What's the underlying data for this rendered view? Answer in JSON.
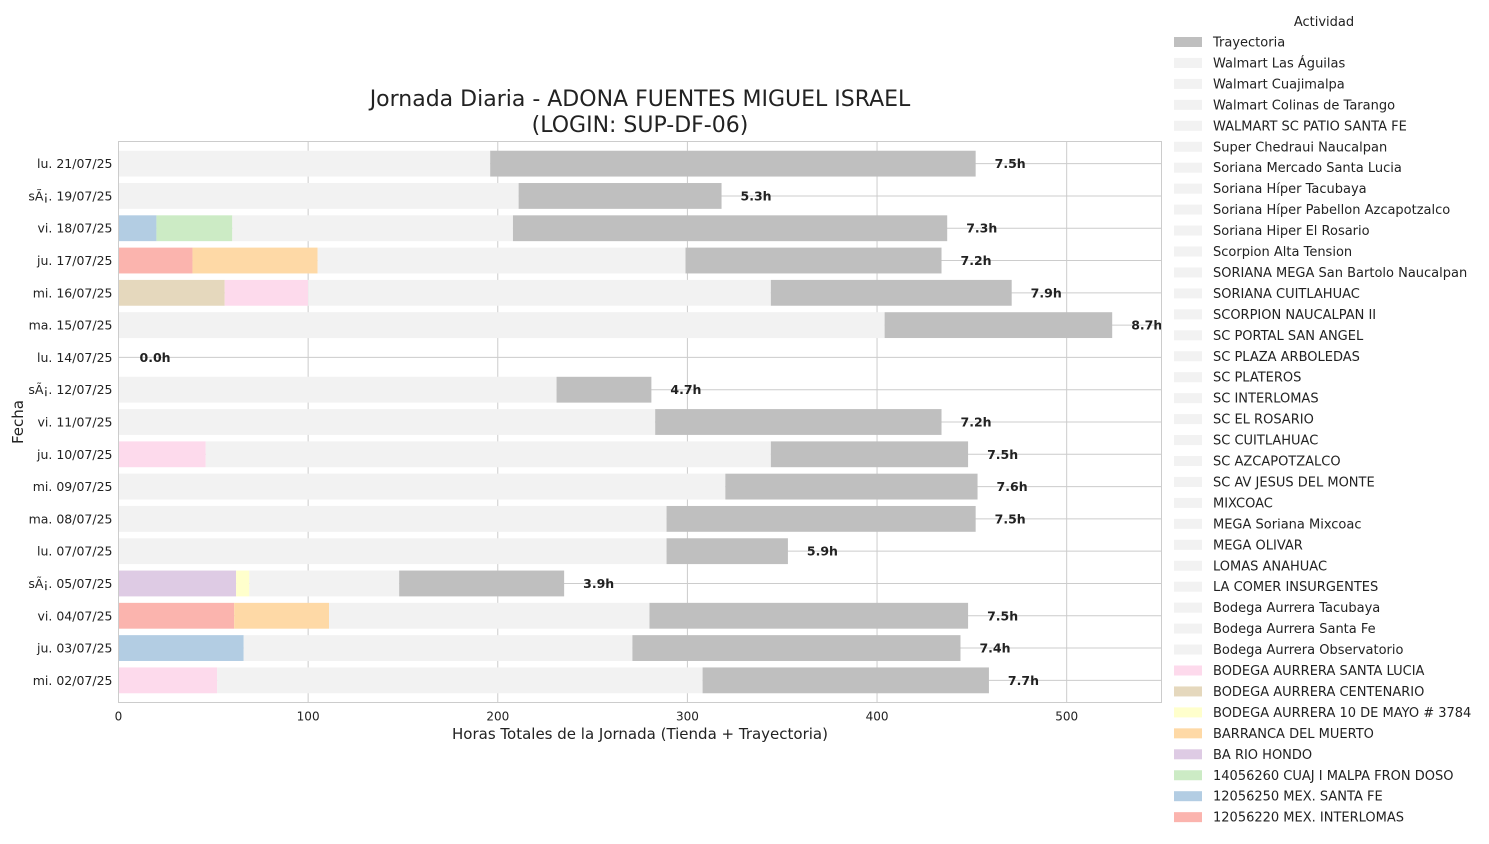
{
  "chart_data": {
    "type": "bar",
    "orientation": "horizontal",
    "stacked": true,
    "title_line1": "Jornada Diaria - ADONA FUENTES MIGUEL ISRAEL",
    "title_line2": "(LOGIN: SUP-DF-06)",
    "xlabel": "Horas Totales de la Jornada (Tienda + Trayectoria)",
    "ylabel": "Fecha",
    "xlim": [
      0,
      550
    ],
    "xticks": [
      0,
      100,
      200,
      300,
      400,
      500
    ],
    "grid": true,
    "legend": {
      "title": "Actividad",
      "placement": "outside-right",
      "entries": [
        {
          "name": "Trayectoria",
          "color": "#bfbfbf"
        },
        {
          "name": "Walmart Las Águilas",
          "color": "#f2f2f2"
        },
        {
          "name": "Walmart Cuajimalpa",
          "color": "#f2f2f2"
        },
        {
          "name": "Walmart Colinas de Tarango",
          "color": "#f2f2f2"
        },
        {
          "name": "WALMART SC PATIO SANTA FE",
          "color": "#f2f2f2"
        },
        {
          "name": "Super Chedraui Naucalpan",
          "color": "#f2f2f2"
        },
        {
          "name": "Soriana Mercado Santa Lucia",
          "color": "#f2f2f2"
        },
        {
          "name": "Soriana Híper Tacubaya",
          "color": "#f2f2f2"
        },
        {
          "name": "Soriana Híper Pabellon Azcapotzalco",
          "color": "#f2f2f2"
        },
        {
          "name": "Soriana Hiper El Rosario",
          "color": "#f2f2f2"
        },
        {
          "name": "Scorpion Alta Tension",
          "color": "#f2f2f2"
        },
        {
          "name": "SORIANA MEGA San Bartolo Naucalpan",
          "color": "#f2f2f2"
        },
        {
          "name": "SORIANA CUITLAHUAC",
          "color": "#f2f2f2"
        },
        {
          "name": "SCORPION NAUCALPAN II",
          "color": "#f2f2f2"
        },
        {
          "name": "SC PORTAL SAN ANGEL",
          "color": "#f2f2f2"
        },
        {
          "name": "SC PLAZA ARBOLEDAS",
          "color": "#f2f2f2"
        },
        {
          "name": "SC PLATEROS",
          "color": "#f2f2f2"
        },
        {
          "name": "SC INTERLOMAS",
          "color": "#f2f2f2"
        },
        {
          "name": "SC EL ROSARIO",
          "color": "#f2f2f2"
        },
        {
          "name": "SC CUITLAHUAC",
          "color": "#f2f2f2"
        },
        {
          "name": "SC AZCAPOTZALCO",
          "color": "#f2f2f2"
        },
        {
          "name": "SC AV JESUS DEL MONTE",
          "color": "#f2f2f2"
        },
        {
          "name": "MIXCOAC",
          "color": "#f2f2f2"
        },
        {
          "name": "MEGA Soriana Mixcoac",
          "color": "#f2f2f2"
        },
        {
          "name": "MEGA OLIVAR",
          "color": "#f2f2f2"
        },
        {
          "name": "LOMAS ANAHUAC",
          "color": "#f2f2f2"
        },
        {
          "name": "LA COMER INSURGENTES",
          "color": "#f2f2f2"
        },
        {
          "name": "Bodega Aurrera Tacubaya",
          "color": "#f2f2f2"
        },
        {
          "name": "Bodega Aurrera Santa Fe",
          "color": "#f2f2f2"
        },
        {
          "name": "Bodega Aurrera Observatorio",
          "color": "#f2f2f2"
        },
        {
          "name": "BODEGA AURRERA SANTA LUCIA",
          "color": "#fddaec"
        },
        {
          "name": "BODEGA AURRERA CENTENARIO",
          "color": "#e5d8bd"
        },
        {
          "name": "BODEGA AURRERA 10 DE MAYO # 3784",
          "color": "#ffffcc"
        },
        {
          "name": "BARRANCA DEL MUERTO",
          "color": "#fed9a6"
        },
        {
          "name": "BA RIO HONDO",
          "color": "#decbe4"
        },
        {
          "name": "14056260 CUAJ I MALPA FRON DOSO",
          "color": "#ccebc5"
        },
        {
          "name": "12056250 MEX. SANTA FE",
          "color": "#b3cde3"
        },
        {
          "name": "12056220 MEX. INTERLOMAS",
          "color": "#fbb4ae"
        }
      ]
    },
    "rows": [
      {
        "date": "lu. 21/07/25",
        "total_label": "7.5h",
        "segments": [
          {
            "activity": "otras tiendas",
            "value": 196,
            "color": "#f2f2f2"
          },
          {
            "activity": "Trayectoria",
            "value": 256,
            "color": "#bfbfbf"
          }
        ]
      },
      {
        "date": "sÃ¡. 19/07/25",
        "total_label": "5.3h",
        "segments": [
          {
            "activity": "otras tiendas",
            "value": 211,
            "color": "#f2f2f2"
          },
          {
            "activity": "Trayectoria",
            "value": 107,
            "color": "#bfbfbf"
          }
        ]
      },
      {
        "date": "vi. 18/07/25",
        "total_label": "7.3h",
        "segments": [
          {
            "activity": "12056250 MEX. SANTA FE",
            "value": 20,
            "color": "#b3cde3"
          },
          {
            "activity": "14056260 CUAJ I MALPA FRON DOSO",
            "value": 40,
            "color": "#ccebc5"
          },
          {
            "activity": "otras tiendas",
            "value": 148,
            "color": "#f2f2f2"
          },
          {
            "activity": "Trayectoria",
            "value": 229,
            "color": "#bfbfbf"
          }
        ]
      },
      {
        "date": "ju. 17/07/25",
        "total_label": "7.2h",
        "segments": [
          {
            "activity": "12056220 MEX. INTERLOMAS",
            "value": 39,
            "color": "#fbb4ae"
          },
          {
            "activity": "BARRANCA DEL MUERTO",
            "value": 66,
            "color": "#fed9a6"
          },
          {
            "activity": "otras tiendas",
            "value": 194,
            "color": "#f2f2f2"
          },
          {
            "activity": "Trayectoria",
            "value": 135,
            "color": "#bfbfbf"
          }
        ]
      },
      {
        "date": "mi. 16/07/25",
        "total_label": "7.9h",
        "segments": [
          {
            "activity": "BODEGA AURRERA CENTENARIO",
            "value": 56,
            "color": "#e5d8bd"
          },
          {
            "activity": "BODEGA AURRERA SANTA LUCIA",
            "value": 44,
            "color": "#fddaec"
          },
          {
            "activity": "otras tiendas",
            "value": 244,
            "color": "#f2f2f2"
          },
          {
            "activity": "Trayectoria",
            "value": 127,
            "color": "#bfbfbf"
          }
        ]
      },
      {
        "date": "ma. 15/07/25",
        "total_label": "8.7h",
        "segments": [
          {
            "activity": "otras tiendas",
            "value": 404,
            "color": "#f2f2f2"
          },
          {
            "activity": "Trayectoria",
            "value": 120,
            "color": "#bfbfbf"
          }
        ]
      },
      {
        "date": "lu. 14/07/25",
        "total_label": "0.0h",
        "segments": []
      },
      {
        "date": "sÃ¡. 12/07/25",
        "total_label": "4.7h",
        "segments": [
          {
            "activity": "otras tiendas",
            "value": 231,
            "color": "#f2f2f2"
          },
          {
            "activity": "Trayectoria",
            "value": 50,
            "color": "#bfbfbf"
          }
        ]
      },
      {
        "date": "vi. 11/07/25",
        "total_label": "7.2h",
        "segments": [
          {
            "activity": "otras tiendas",
            "value": 283,
            "color": "#f2f2f2"
          },
          {
            "activity": "Trayectoria",
            "value": 151,
            "color": "#bfbfbf"
          }
        ]
      },
      {
        "date": "ju. 10/07/25",
        "total_label": "7.5h",
        "segments": [
          {
            "activity": "BODEGA AURRERA SANTA LUCIA",
            "value": 46,
            "color": "#fddaec"
          },
          {
            "activity": "otras tiendas",
            "value": 298,
            "color": "#f2f2f2"
          },
          {
            "activity": "Trayectoria",
            "value": 104,
            "color": "#bfbfbf"
          }
        ]
      },
      {
        "date": "mi. 09/07/25",
        "total_label": "7.6h",
        "segments": [
          {
            "activity": "otras tiendas",
            "value": 320,
            "color": "#f2f2f2"
          },
          {
            "activity": "Trayectoria",
            "value": 133,
            "color": "#bfbfbf"
          }
        ]
      },
      {
        "date": "ma. 08/07/25",
        "total_label": "7.5h",
        "segments": [
          {
            "activity": "otras tiendas",
            "value": 289,
            "color": "#f2f2f2"
          },
          {
            "activity": "Trayectoria",
            "value": 163,
            "color": "#bfbfbf"
          }
        ]
      },
      {
        "date": "lu. 07/07/25",
        "total_label": "5.9h",
        "segments": [
          {
            "activity": "otras tiendas",
            "value": 289,
            "color": "#f2f2f2"
          },
          {
            "activity": "Trayectoria",
            "value": 64,
            "color": "#bfbfbf"
          }
        ]
      },
      {
        "date": "sÃ¡. 05/07/25",
        "total_label": "3.9h",
        "segments": [
          {
            "activity": "BA RIO HONDO",
            "value": 62,
            "color": "#decbe4"
          },
          {
            "activity": "BODEGA AURRERA 10 DE MAYO # 3784",
            "value": 7,
            "color": "#ffffcc"
          },
          {
            "activity": "otras tiendas",
            "value": 79,
            "color": "#f2f2f2"
          },
          {
            "activity": "Trayectoria",
            "value": 87,
            "color": "#bfbfbf"
          }
        ]
      },
      {
        "date": "vi. 04/07/25",
        "total_label": "7.5h",
        "segments": [
          {
            "activity": "12056220 MEX. INTERLOMAS",
            "value": 61,
            "color": "#fbb4ae"
          },
          {
            "activity": "BARRANCA DEL MUERTO",
            "value": 50,
            "color": "#fed9a6"
          },
          {
            "activity": "otras tiendas",
            "value": 169,
            "color": "#f2f2f2"
          },
          {
            "activity": "Trayectoria",
            "value": 168,
            "color": "#bfbfbf"
          }
        ]
      },
      {
        "date": "ju. 03/07/25",
        "total_label": "7.4h",
        "segments": [
          {
            "activity": "12056250 MEX. SANTA FE",
            "value": 66,
            "color": "#b3cde3"
          },
          {
            "activity": "otras tiendas",
            "value": 205,
            "color": "#f2f2f2"
          },
          {
            "activity": "Trayectoria",
            "value": 173,
            "color": "#bfbfbf"
          }
        ]
      },
      {
        "date": "mi. 02/07/25",
        "total_label": "7.7h",
        "segments": [
          {
            "activity": "BODEGA AURRERA SANTA LUCIA",
            "value": 52,
            "color": "#fddaec"
          },
          {
            "activity": "otras tiendas",
            "value": 256,
            "color": "#f2f2f2"
          },
          {
            "activity": "Trayectoria",
            "value": 151,
            "color": "#bfbfbf"
          }
        ]
      }
    ]
  }
}
